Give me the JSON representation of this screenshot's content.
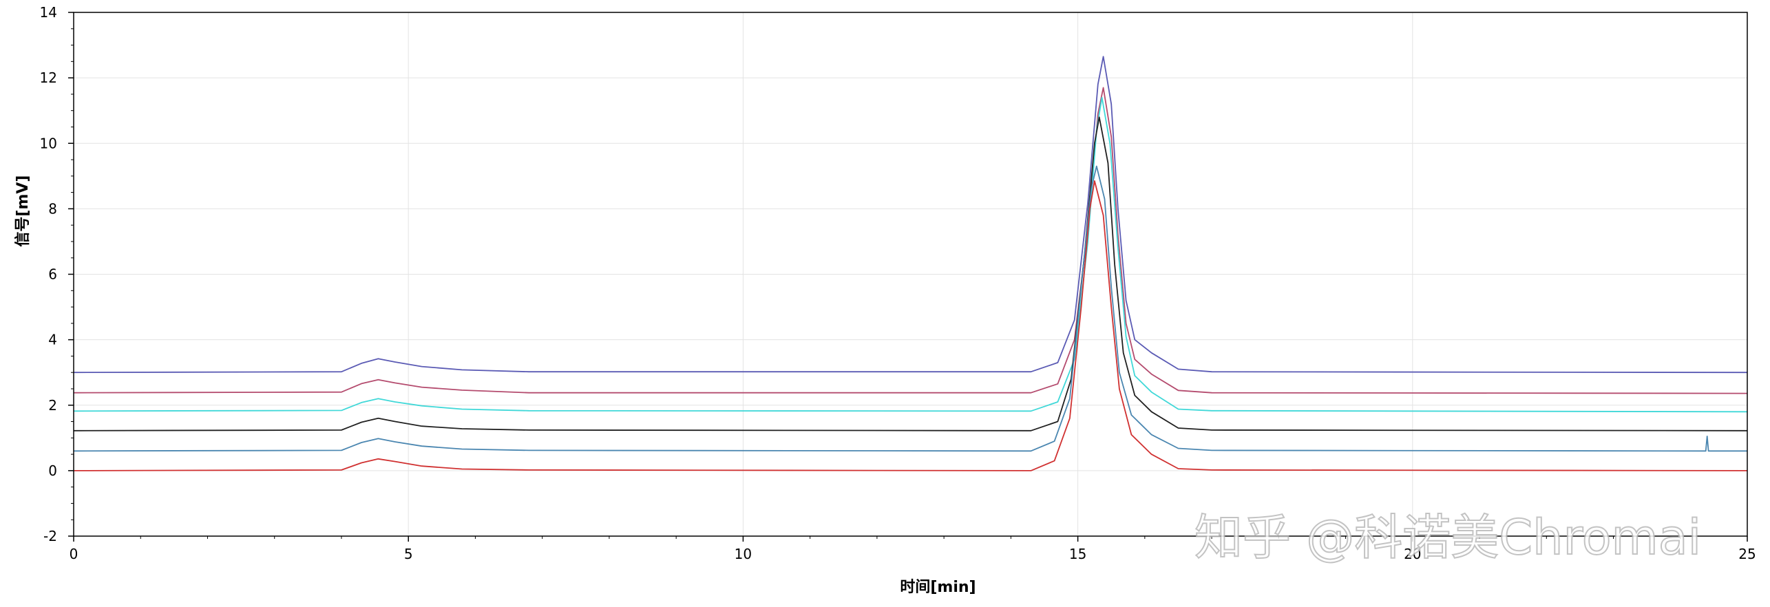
{
  "chart_data": {
    "type": "line",
    "xlabel": "时间[min]",
    "ylabel": "信号[mV]",
    "xlim": [
      0,
      25
    ],
    "ylim": [
      -2,
      14
    ],
    "x_ticks": [
      0,
      5,
      10,
      15,
      20,
      25
    ],
    "y_ticks": [
      -2,
      0,
      2,
      4,
      6,
      8,
      10,
      12,
      14
    ],
    "grid": true,
    "legend": "none",
    "series": [
      {
        "color": "#5a5ab4",
        "points": [
          [
            0,
            3.0
          ],
          [
            4.0,
            3.02
          ],
          [
            4.3,
            3.28
          ],
          [
            4.55,
            3.42
          ],
          [
            4.8,
            3.32
          ],
          [
            5.2,
            3.18
          ],
          [
            5.8,
            3.08
          ],
          [
            6.8,
            3.02
          ],
          [
            14.3,
            3.02
          ],
          [
            14.7,
            3.3
          ],
          [
            14.95,
            4.6
          ],
          [
            15.15,
            8.2
          ],
          [
            15.3,
            11.8
          ],
          [
            15.38,
            12.65
          ],
          [
            15.5,
            11.2
          ],
          [
            15.6,
            8.0
          ],
          [
            15.72,
            5.2
          ],
          [
            15.85,
            4.0
          ],
          [
            16.1,
            3.6
          ],
          [
            16.5,
            3.1
          ],
          [
            17.0,
            3.02
          ],
          [
            25.0,
            3.0
          ]
        ]
      },
      {
        "color": "#b44b6e",
        "points": [
          [
            0,
            2.38
          ],
          [
            4.0,
            2.4
          ],
          [
            4.3,
            2.66
          ],
          [
            4.55,
            2.78
          ],
          [
            4.8,
            2.68
          ],
          [
            5.2,
            2.55
          ],
          [
            5.8,
            2.46
          ],
          [
            6.8,
            2.38
          ],
          [
            14.3,
            2.38
          ],
          [
            14.7,
            2.65
          ],
          [
            14.95,
            4.0
          ],
          [
            15.15,
            7.4
          ],
          [
            15.3,
            10.9
          ],
          [
            15.38,
            11.7
          ],
          [
            15.5,
            10.2
          ],
          [
            15.6,
            7.2
          ],
          [
            15.72,
            4.5
          ],
          [
            15.85,
            3.4
          ],
          [
            16.1,
            2.95
          ],
          [
            16.5,
            2.45
          ],
          [
            17.0,
            2.38
          ],
          [
            25.0,
            2.36
          ]
        ]
      },
      {
        "color": "#40d8d8",
        "points": [
          [
            0,
            1.82
          ],
          [
            4.0,
            1.84
          ],
          [
            4.3,
            2.08
          ],
          [
            4.55,
            2.2
          ],
          [
            4.8,
            2.1
          ],
          [
            5.2,
            1.98
          ],
          [
            5.8,
            1.88
          ],
          [
            6.8,
            1.83
          ],
          [
            14.3,
            1.82
          ],
          [
            14.7,
            2.1
          ],
          [
            14.95,
            3.4
          ],
          [
            15.15,
            7.0
          ],
          [
            15.28,
            10.4
          ],
          [
            15.36,
            11.4
          ],
          [
            15.48,
            10.0
          ],
          [
            15.6,
            6.8
          ],
          [
            15.72,
            4.1
          ],
          [
            15.85,
            2.9
          ],
          [
            16.1,
            2.4
          ],
          [
            16.5,
            1.88
          ],
          [
            17.0,
            1.83
          ],
          [
            25.0,
            1.8
          ]
        ]
      },
      {
        "color": "#202020",
        "points": [
          [
            0,
            1.22
          ],
          [
            4.0,
            1.24
          ],
          [
            4.3,
            1.48
          ],
          [
            4.55,
            1.6
          ],
          [
            4.8,
            1.5
          ],
          [
            5.2,
            1.36
          ],
          [
            5.8,
            1.28
          ],
          [
            6.8,
            1.24
          ],
          [
            14.3,
            1.22
          ],
          [
            14.7,
            1.5
          ],
          [
            14.9,
            2.8
          ],
          [
            15.1,
            6.6
          ],
          [
            15.25,
            10.0
          ],
          [
            15.32,
            10.8
          ],
          [
            15.45,
            9.4
          ],
          [
            15.55,
            6.3
          ],
          [
            15.68,
            3.6
          ],
          [
            15.85,
            2.3
          ],
          [
            16.1,
            1.8
          ],
          [
            16.5,
            1.3
          ],
          [
            17.0,
            1.24
          ],
          [
            25.0,
            1.22
          ]
        ]
      },
      {
        "color": "#4a86b0",
        "points": [
          [
            0,
            0.6
          ],
          [
            4.0,
            0.62
          ],
          [
            4.3,
            0.86
          ],
          [
            4.55,
            0.98
          ],
          [
            4.8,
            0.88
          ],
          [
            5.2,
            0.75
          ],
          [
            5.8,
            0.66
          ],
          [
            6.8,
            0.62
          ],
          [
            14.3,
            0.6
          ],
          [
            14.65,
            0.9
          ],
          [
            14.88,
            2.2
          ],
          [
            15.05,
            5.6
          ],
          [
            15.2,
            8.6
          ],
          [
            15.28,
            9.3
          ],
          [
            15.4,
            8.3
          ],
          [
            15.5,
            5.6
          ],
          [
            15.62,
            3.0
          ],
          [
            15.8,
            1.7
          ],
          [
            16.1,
            1.1
          ],
          [
            16.5,
            0.68
          ],
          [
            17.0,
            0.62
          ],
          [
            24.38,
            0.6
          ],
          [
            24.4,
            1.05
          ],
          [
            24.42,
            0.6
          ],
          [
            25.0,
            0.6
          ]
        ]
      },
      {
        "color": "#d03030",
        "points": [
          [
            0,
            0.0
          ],
          [
            4.0,
            0.02
          ],
          [
            4.3,
            0.24
          ],
          [
            4.55,
            0.36
          ],
          [
            4.8,
            0.28
          ],
          [
            5.2,
            0.14
          ],
          [
            5.8,
            0.05
          ],
          [
            6.8,
            0.02
          ],
          [
            14.3,
            0.0
          ],
          [
            14.65,
            0.3
          ],
          [
            14.88,
            1.6
          ],
          [
            15.05,
            5.0
          ],
          [
            15.18,
            8.0
          ],
          [
            15.25,
            8.85
          ],
          [
            15.38,
            7.8
          ],
          [
            15.5,
            5.0
          ],
          [
            15.62,
            2.5
          ],
          [
            15.8,
            1.1
          ],
          [
            16.1,
            0.5
          ],
          [
            16.5,
            0.06
          ],
          [
            17.0,
            0.02
          ],
          [
            25.0,
            0.0
          ]
        ]
      }
    ]
  },
  "watermark": "知乎 @科诺美Chromai"
}
